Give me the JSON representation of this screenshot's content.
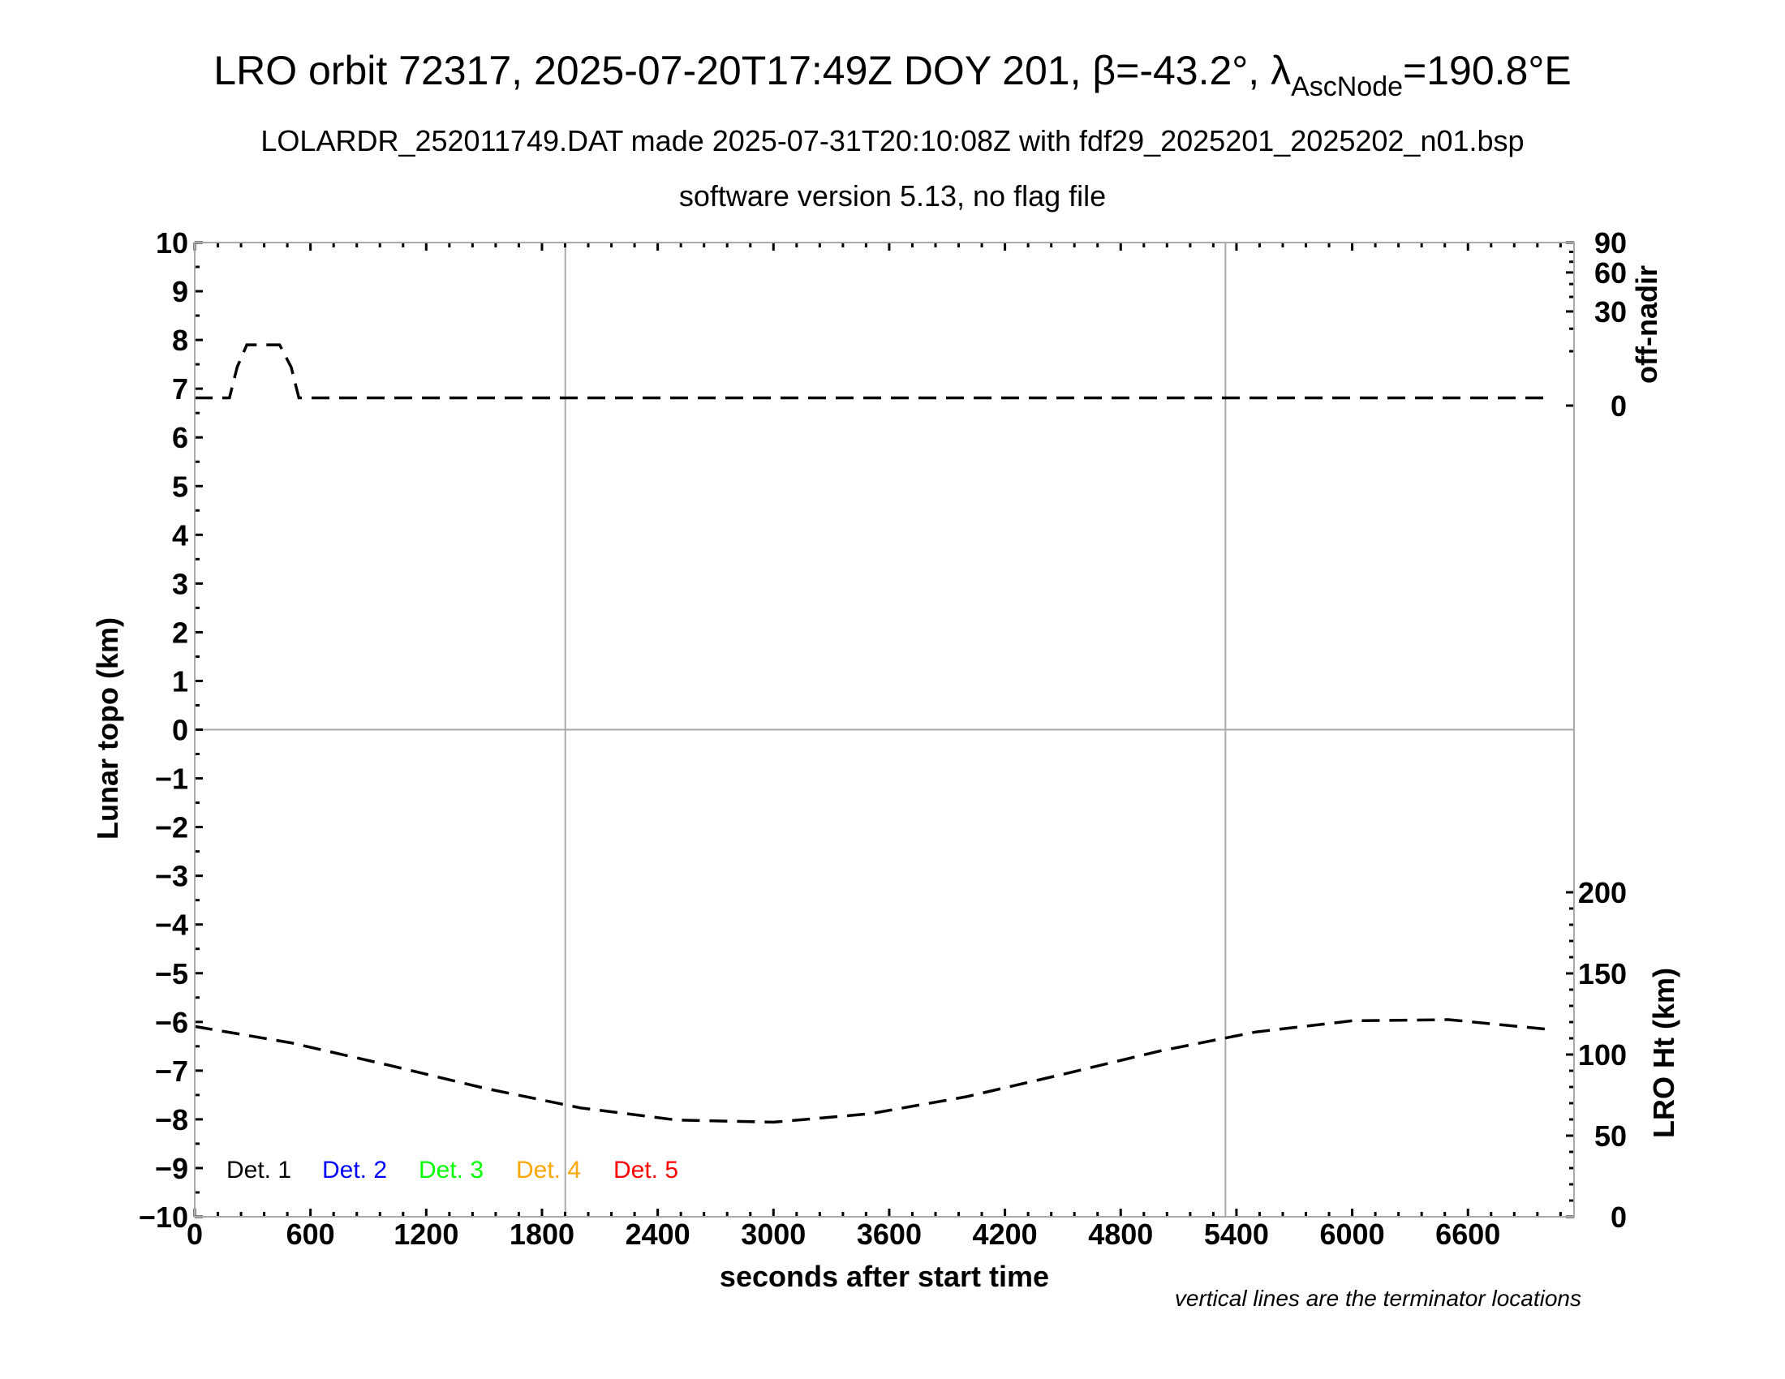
{
  "chart_data": {
    "type": "line",
    "title_main": "LRO orbit 72317, 2025-07-20T17:49Z DOY 201, β=-43.2°, λ",
    "title_sub": "AscNode",
    "title_end": "=190.8°E",
    "subtitle1": "LOLARDR_252011749.DAT made 2025-07-31T20:10:08Z with fdf29_2025201_2025202_n01.bsp",
    "subtitle2": "software version 5.13, no flag file",
    "xlabel": "seconds after start time",
    "ylabel": "Lunar topo (km)",
    "y2label_top": "off-nadir",
    "y2label_bottom": "LRO Ht (km)",
    "note": "vertical lines are the terminator locations",
    "xlim": [
      0,
      7150
    ],
    "ylim": [
      -10,
      10
    ],
    "offnadir_lim": [
      0,
      90
    ],
    "offnadir_scale": "sqrt",
    "height_lim": [
      0,
      280
    ],
    "xticks": [
      "0",
      "600",
      "1200",
      "1800",
      "2400",
      "3000",
      "3600",
      "4200",
      "4800",
      "5400",
      "6000",
      "6600"
    ],
    "yticks": [
      "10",
      "9",
      "8",
      "7",
      "6",
      "5",
      "4",
      "3",
      "2",
      "1",
      "0",
      "−1",
      "−2",
      "−3",
      "−4",
      "−5",
      "−6",
      "−7",
      "−8",
      "−9",
      "−10"
    ],
    "offnadir_ticks": [
      "0",
      "30",
      "60",
      "90"
    ],
    "height_ticks": [
      "0",
      "50",
      "100",
      "150",
      "200"
    ],
    "terminators": [
      1921,
      5343
    ],
    "grid": "zero line and terminator lines",
    "legend": [
      {
        "label": "Det. 1",
        "color": "#000000"
      },
      {
        "label": "Det. 2",
        "color": "#0000ff"
      },
      {
        "label": "Det. 3",
        "color": "#00ff00"
      },
      {
        "label": "Det. 4",
        "color": "#ffa500"
      },
      {
        "label": "Det. 5",
        "color": "#ff0000"
      }
    ],
    "legend_placement": "bottom-left",
    "series": [
      {
        "axis": "off-nadir (deg)",
        "style": "dashed",
        "color": "#000000",
        "x": [
          0,
          180,
          220,
          270,
          440,
          500,
          540,
          7000
        ],
        "y": [
          0.2,
          0.2,
          5,
          12.5,
          12.5,
          5,
          0.2,
          0.2
        ]
      },
      {
        "axis": "LRO Ht (km)",
        "style": "dashed",
        "color": "#000000",
        "x": [
          0,
          500,
          1000,
          1500,
          2000,
          2500,
          3000,
          3500,
          4000,
          4500,
          5000,
          5500,
          6000,
          6500,
          7000
        ],
        "y": [
          117.3,
          107.2,
          93.6,
          79.3,
          67.1,
          59.6,
          58.3,
          63.5,
          74.0,
          87.8,
          102.1,
          113.9,
          120.8,
          121.5,
          115.7
        ]
      }
    ]
  }
}
